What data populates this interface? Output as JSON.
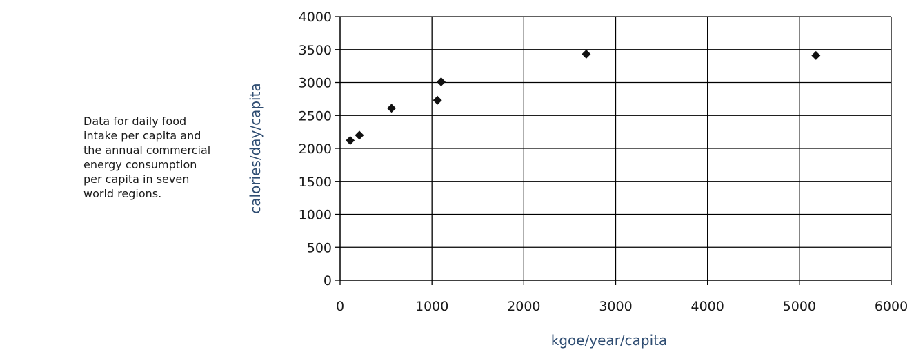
{
  "caption": "Data for daily food intake per capita and the annual commercial energy consumption per capita in seven world regions.",
  "chart_data": {
    "type": "scatter",
    "xlabel": "kgoe/year/capita",
    "ylabel": "calories/day/capita",
    "xlim": [
      0,
      6000
    ],
    "ylim": [
      0,
      4000
    ],
    "xticks": [
      "0",
      "1000",
      "2000",
      "3000",
      "4000",
      "5000",
      "6000"
    ],
    "yticks": [
      "0",
      "500",
      "1000",
      "1500",
      "2000",
      "2500",
      "3000",
      "3500",
      "4000"
    ],
    "grid": true,
    "marker": "diamond",
    "marker_color": "#111111",
    "points": [
      {
        "x": 110,
        "y": 2120
      },
      {
        "x": 210,
        "y": 2200
      },
      {
        "x": 560,
        "y": 2610
      },
      {
        "x": 1060,
        "y": 2730
      },
      {
        "x": 1100,
        "y": 3010
      },
      {
        "x": 2680,
        "y": 3430
      },
      {
        "x": 5180,
        "y": 3410
      }
    ]
  }
}
